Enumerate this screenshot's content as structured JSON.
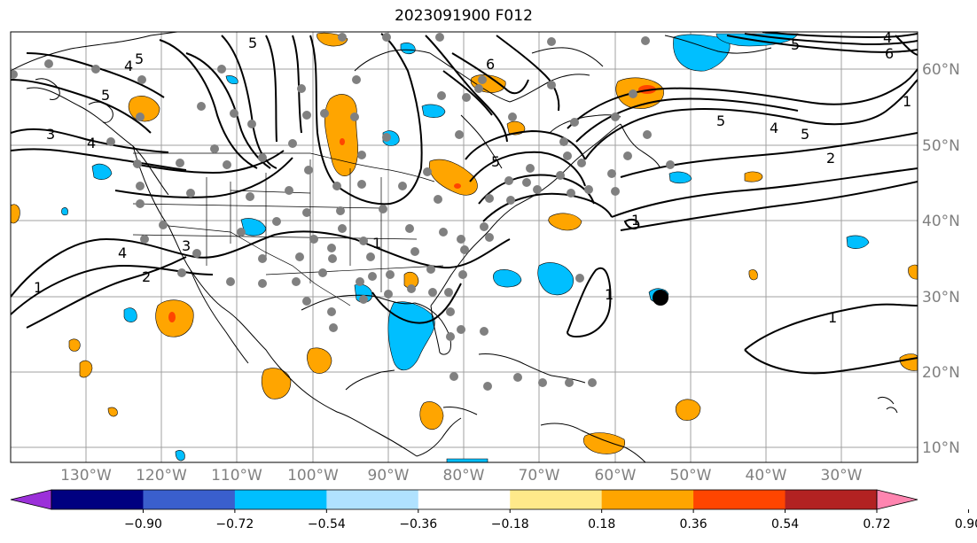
{
  "title": "2023091900 F012",
  "lat_labels": [
    "60°N",
    "50°N",
    "40°N",
    "30°N",
    "20°N",
    "10°N"
  ],
  "lon_labels": [
    "130°W",
    "120°W",
    "110°W",
    "100°W",
    "90°W",
    "80°W",
    "70°W",
    "60°W",
    "50°W",
    "40°W",
    "30°W"
  ],
  "contour_labels": [
    "4",
    "5",
    "5",
    "3",
    "4",
    "5",
    "6",
    "4",
    "5",
    "6",
    "5",
    "4",
    "5",
    "2",
    "5",
    "1",
    "1",
    "1",
    "1",
    "4",
    "3",
    "2",
    "1",
    "1"
  ],
  "colorbar": {
    "ticks": [
      "−0.90",
      "−0.72",
      "−0.54",
      "−0.36",
      "−0.18",
      "0.18",
      "0.36",
      "0.54",
      "0.72",
      "0.90"
    ],
    "colors": [
      "#9b30d9",
      "#000080",
      "#3a5fcd",
      "#00bfff",
      "#b0e2ff",
      "#ffffff",
      "#ffe98a",
      "#ffa500",
      "#ff4500",
      "#b22222",
      "#ff85b0"
    ]
  },
  "colors": {
    "land_outline": "#000000",
    "grid": "#a0a0a0",
    "station": "#808080",
    "positive": "#ffa500",
    "negative": "#00bfff",
    "strong_positive": "#ff4500"
  }
}
